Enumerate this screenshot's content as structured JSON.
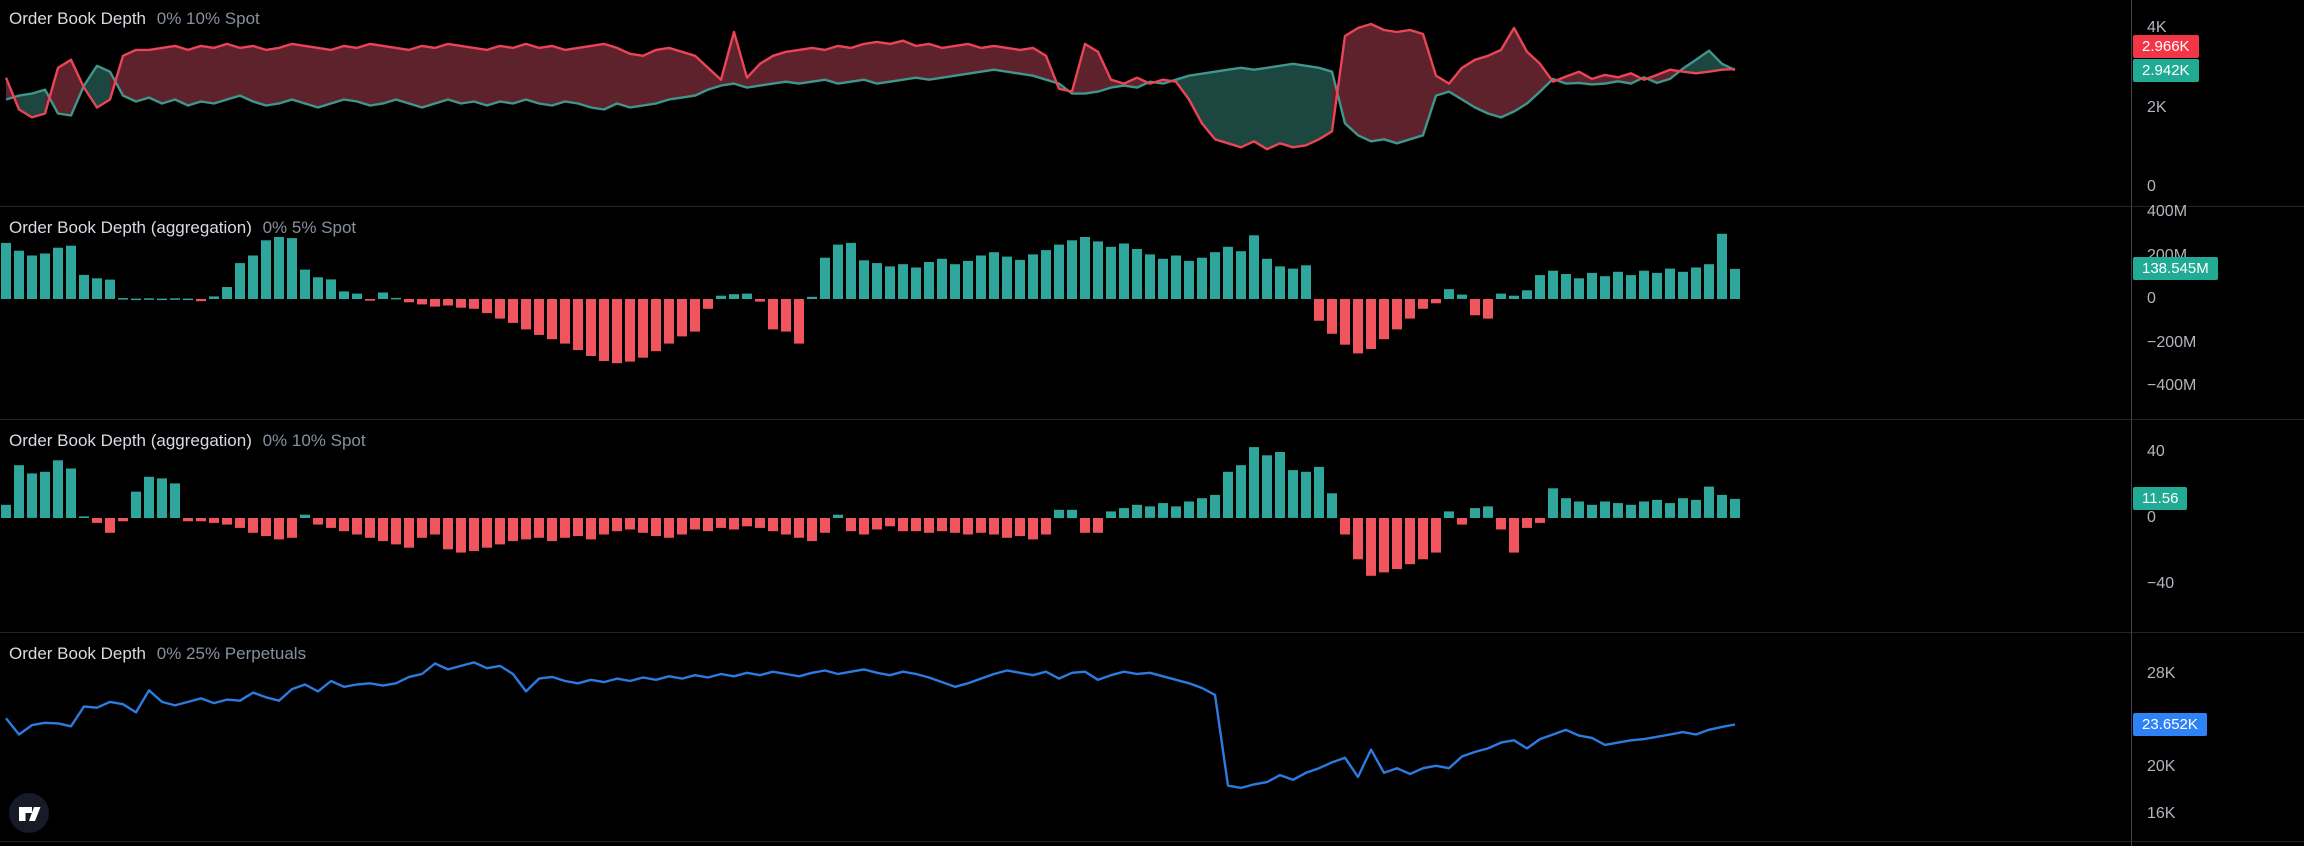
{
  "colors": {
    "background": "#000000",
    "ask_line": "#ea4456",
    "ask_fill": "#5e222c",
    "bid_line": "#3f968d",
    "bid_fill": "#1c4640",
    "bar_up": "#2fa69b",
    "bar_down": "#f0545c",
    "depth_line": "#2c7be0",
    "badge_red": "#f23645",
    "badge_teal": "#22ab94",
    "badge_blue": "#2e82f5",
    "axis_text": "#b2b5be",
    "title_text": "#d8dbe2",
    "title_subtext": "#87909e"
  },
  "chart_data": [
    {
      "type": "area",
      "title": {
        "bold": "Order Book Depth",
        "rest": "0% 10% Spot"
      },
      "unit": "K",
      "ylim": [
        0,
        4.7
      ],
      "ticks": [
        {
          "label": "4K",
          "value": 4
        },
        {
          "label": "2K",
          "value": 2
        },
        {
          "label": "0",
          "value": 0
        }
      ],
      "badges": [
        {
          "label": "2.966K",
          "value": 2.966,
          "color": "#f23645"
        },
        {
          "label": "2.942K",
          "value": 2.942,
          "color": "#22ab94"
        }
      ],
      "series": [
        {
          "name": "ask-depth",
          "values": [
            2.75,
            1.95,
            1.75,
            1.85,
            3.0,
            3.2,
            2.5,
            2.0,
            2.2,
            3.3,
            3.45,
            3.45,
            3.5,
            3.55,
            3.45,
            3.55,
            3.5,
            3.6,
            3.5,
            3.55,
            3.45,
            3.5,
            3.6,
            3.55,
            3.5,
            3.45,
            3.55,
            3.5,
            3.6,
            3.55,
            3.5,
            3.45,
            3.55,
            3.5,
            3.6,
            3.55,
            3.5,
            3.45,
            3.55,
            3.5,
            3.6,
            3.5,
            3.55,
            3.45,
            3.5,
            3.55,
            3.6,
            3.5,
            3.35,
            3.3,
            3.45,
            3.5,
            3.4,
            3.3,
            3.0,
            2.7,
            3.9,
            2.75,
            3.1,
            3.3,
            3.4,
            3.45,
            3.5,
            3.45,
            3.55,
            3.5,
            3.6,
            3.65,
            3.6,
            3.68,
            3.55,
            3.6,
            3.5,
            3.55,
            3.6,
            3.5,
            3.55,
            3.5,
            3.45,
            3.5,
            3.3,
            2.47,
            2.4,
            3.6,
            3.4,
            2.7,
            2.6,
            2.75,
            2.6,
            2.7,
            2.65,
            2.2,
            1.6,
            1.2,
            1.1,
            1.0,
            1.15,
            0.95,
            1.1,
            1.0,
            1.05,
            1.2,
            1.4,
            3.8,
            4.0,
            4.1,
            3.95,
            3.9,
            3.95,
            3.85,
            2.8,
            2.6,
            3.0,
            3.2,
            3.3,
            3.45,
            4.0,
            3.4,
            3.1,
            2.65,
            2.78,
            2.9,
            2.72,
            2.82,
            2.76,
            2.86,
            2.7,
            2.82,
            2.95,
            2.9,
            2.86,
            2.9,
            2.95,
            2.966
          ]
        },
        {
          "name": "bid-depth",
          "values": [
            2.2,
            2.3,
            2.35,
            2.45,
            1.85,
            1.8,
            2.55,
            3.05,
            2.9,
            2.3,
            2.15,
            2.25,
            2.1,
            2.2,
            2.05,
            2.15,
            2.1,
            2.2,
            2.3,
            2.15,
            2.05,
            2.1,
            2.2,
            2.1,
            2.0,
            2.1,
            2.2,
            2.15,
            2.05,
            2.1,
            2.2,
            2.1,
            2.0,
            2.1,
            2.2,
            2.1,
            2.15,
            2.05,
            2.15,
            2.1,
            2.2,
            2.1,
            2.05,
            2.15,
            2.1,
            2.0,
            1.95,
            2.1,
            2.0,
            2.05,
            2.1,
            2.2,
            2.25,
            2.3,
            2.45,
            2.55,
            2.6,
            2.5,
            2.55,
            2.6,
            2.65,
            2.6,
            2.65,
            2.7,
            2.6,
            2.65,
            2.7,
            2.6,
            2.65,
            2.7,
            2.75,
            2.7,
            2.75,
            2.8,
            2.85,
            2.9,
            2.95,
            2.9,
            2.85,
            2.8,
            2.7,
            2.6,
            2.35,
            2.35,
            2.4,
            2.5,
            2.55,
            2.5,
            2.65,
            2.6,
            2.7,
            2.8,
            2.85,
            2.9,
            2.95,
            3.0,
            2.95,
            3.0,
            3.05,
            3.1,
            3.05,
            3.0,
            2.9,
            1.6,
            1.3,
            1.15,
            1.2,
            1.1,
            1.2,
            1.3,
            2.3,
            2.4,
            2.2,
            2.0,
            1.85,
            1.75,
            1.9,
            2.1,
            2.4,
            2.72,
            2.6,
            2.62,
            2.58,
            2.6,
            2.66,
            2.6,
            2.76,
            2.62,
            2.72,
            2.98,
            3.2,
            3.43,
            3.1,
            2.942
          ]
        }
      ]
    },
    {
      "type": "bar",
      "title": {
        "bold": "Order Book Depth (aggregation)",
        "rest": "0% 5% Spot"
      },
      "unit": "M",
      "ylim": [
        -550,
        430
      ],
      "ticks": [
        {
          "label": "400M",
          "value": 400
        },
        {
          "label": "200M",
          "value": 200
        },
        {
          "label": "0",
          "value": 0
        },
        {
          "label": "−200M",
          "value": -200
        },
        {
          "label": "−400M",
          "value": -400
        }
      ],
      "badges": [
        {
          "label": "138.545M",
          "value": 138.545,
          "color": "#22ab94"
        }
      ],
      "values": [
        258,
        222,
        200,
        209,
        236,
        245,
        111,
        95,
        89,
        4,
        2,
        3,
        2,
        3,
        2,
        -10,
        12,
        55,
        165,
        200,
        270,
        285,
        280,
        135,
        100,
        90,
        35,
        25,
        -8,
        30,
        5,
        -15,
        -25,
        -35,
        -30,
        -40,
        -45,
        -65,
        -90,
        -110,
        -140,
        -165,
        -185,
        -205,
        -235,
        -262,
        -285,
        -295,
        -288,
        -270,
        -240,
        -205,
        -172,
        -150,
        -45,
        15,
        22,
        25,
        -12,
        -140,
        -150,
        -205,
        10,
        190,
        250,
        258,
        178,
        165,
        150,
        160,
        145,
        170,
        185,
        160,
        175,
        200,
        215,
        195,
        180,
        205,
        225,
        250,
        270,
        285,
        265,
        240,
        255,
        230,
        205,
        185,
        200,
        175,
        190,
        215,
        240,
        220,
        293,
        185,
        150,
        140,
        155,
        -100,
        -160,
        -210,
        -250,
        -230,
        -185,
        -140,
        -90,
        -45,
        -20,
        45,
        20,
        -75,
        -90,
        25,
        15,
        40,
        110,
        130,
        115,
        95,
        120,
        105,
        125,
        110,
        130,
        120,
        140,
        125,
        145,
        160,
        300,
        138.545
      ]
    },
    {
      "type": "bar",
      "title": {
        "bold": "Order Book Depth (aggregation)",
        "rest": "0% 10% Spot"
      },
      "unit": "",
      "ylim": [
        -69,
        60
      ],
      "ticks": [
        {
          "label": "40",
          "value": 40
        },
        {
          "label": "0",
          "value": 0
        },
        {
          "label": "−40",
          "value": -40
        }
      ],
      "badges": [
        {
          "label": "11.56",
          "value": 11.56,
          "color": "#22ab94"
        }
      ],
      "values": [
        8,
        32,
        27,
        28,
        35,
        30,
        1,
        -3,
        -9,
        -2,
        16,
        25,
        24,
        21,
        -2,
        -2,
        -3,
        -4,
        -6,
        -9,
        -11,
        -13,
        -12,
        2,
        -4,
        -6,
        -8,
        -10,
        -12,
        -14,
        -16,
        -18,
        -12,
        -10,
        -19,
        -21,
        -20,
        -18,
        -16,
        -14,
        -13,
        -12,
        -14,
        -12,
        -11,
        -13,
        -10,
        -8,
        -7,
        -9,
        -11,
        -12,
        -10,
        -7,
        -8,
        -6,
        -7,
        -5,
        -6,
        -8,
        -10,
        -12,
        -14,
        -9,
        2,
        -8,
        -10,
        -7,
        -5,
        -8,
        -8,
        -9,
        -8,
        -9,
        -10,
        -9,
        -10,
        -12,
        -11,
        -13,
        -10,
        5,
        5,
        -9,
        -9,
        4,
        6,
        8,
        7,
        9,
        7,
        10,
        12,
        14,
        28,
        32,
        43,
        38,
        40,
        29,
        28,
        31,
        15,
        -10,
        -25,
        -35,
        -33,
        -31,
        -28,
        -25,
        -21,
        4,
        -4,
        6,
        7,
        -7,
        -21,
        -6,
        -3,
        18,
        12,
        10,
        8,
        10,
        9,
        8,
        10,
        11,
        9,
        12,
        11,
        19,
        14,
        11.56
      ]
    },
    {
      "type": "line",
      "title": {
        "bold": "Order Book Depth",
        "rest": "0% 25% Perpetuals"
      },
      "unit": "K",
      "ylim": [
        13.6,
        31.6
      ],
      "ticks": [
        {
          "label": "28K",
          "value": 28
        },
        {
          "label": "20K",
          "value": 20
        },
        {
          "label": "16K",
          "value": 16
        }
      ],
      "badges": [
        {
          "label": "23.652K",
          "value": 23.652,
          "color": "#2e82f5"
        }
      ],
      "values": [
        24.2,
        22.8,
        23.6,
        23.8,
        23.75,
        23.5,
        25.2,
        25.1,
        25.6,
        25.4,
        24.7,
        26.6,
        25.6,
        25.3,
        25.6,
        25.9,
        25.5,
        25.8,
        25.7,
        26.4,
        26.0,
        25.7,
        26.7,
        27.1,
        26.5,
        27.4,
        26.9,
        27.1,
        27.2,
        27.0,
        27.2,
        27.75,
        28.0,
        28.9,
        28.4,
        28.7,
        29.0,
        28.5,
        28.7,
        28.0,
        26.5,
        27.6,
        27.75,
        27.4,
        27.2,
        27.5,
        27.3,
        27.6,
        27.4,
        27.7,
        27.5,
        27.8,
        27.6,
        27.9,
        27.7,
        28.0,
        27.8,
        28.1,
        27.9,
        28.2,
        28.0,
        27.8,
        28.1,
        28.3,
        28.0,
        28.2,
        28.4,
        28.1,
        27.9,
        28.2,
        28.0,
        27.7,
        27.3,
        26.9,
        27.2,
        27.6,
        28.0,
        28.3,
        28.1,
        27.9,
        28.2,
        27.6,
        28.1,
        28.2,
        27.5,
        27.9,
        28.2,
        28.0,
        28.1,
        27.8,
        27.5,
        27.2,
        26.8,
        26.2,
        18.4,
        18.2,
        18.5,
        18.7,
        19.3,
        18.9,
        19.5,
        19.9,
        20.4,
        20.8,
        19.15,
        21.5,
        19.5,
        19.9,
        19.4,
        19.9,
        20.1,
        19.9,
        20.9,
        21.3,
        21.6,
        22.1,
        22.3,
        21.6,
        22.4,
        22.8,
        23.2,
        22.7,
        22.5,
        21.9,
        22.1,
        22.3,
        22.4,
        22.6,
        22.8,
        23.0,
        22.8,
        23.2,
        23.45,
        23.652
      ]
    }
  ]
}
